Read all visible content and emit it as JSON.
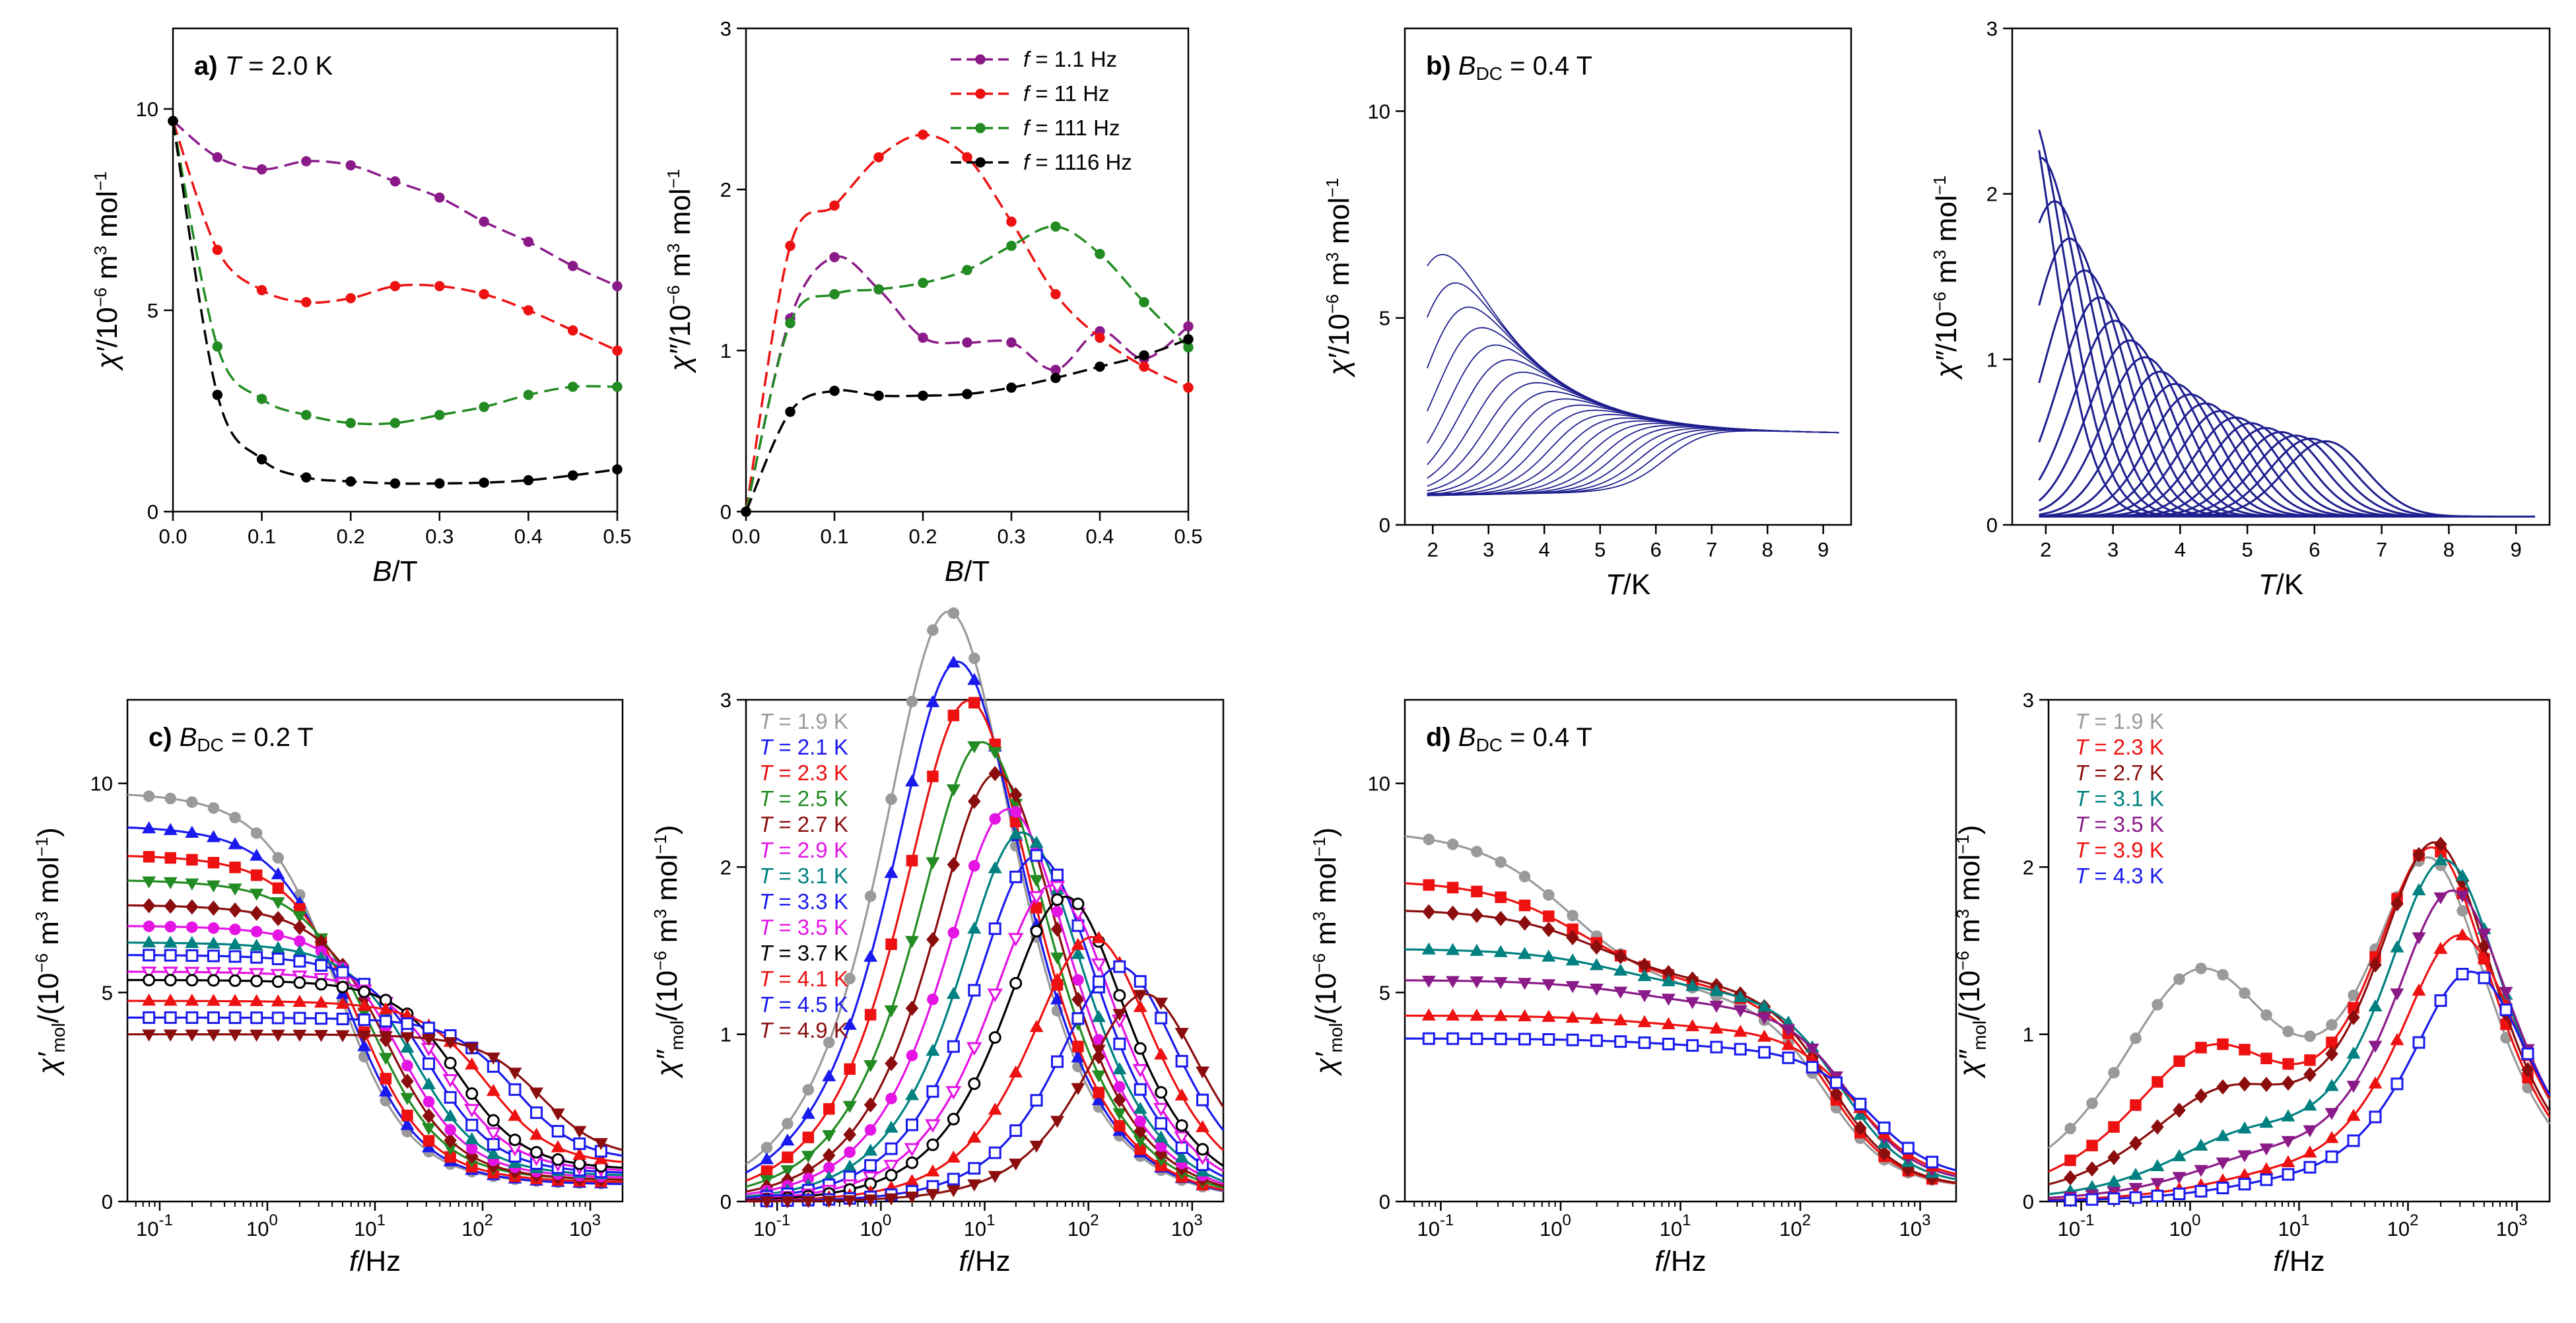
{
  "figure": {
    "colors": {
      "purple": "#8b1a89",
      "red": "#ee1111",
      "green": "#228b22",
      "black": "#000000",
      "blue": "#1a1aee",
      "darkred": "#8b0d0d",
      "teal": "#008080",
      "magenta": "#e414e4",
      "gray": "#9a9a9a",
      "navy": "#1f1f8f",
      "purple2": "#8b1a89"
    }
  },
  "chart_data": [
    {
      "id": "a1",
      "type": "line",
      "title_label": "a)",
      "title_sym": "T",
      "title_value": "= 2.0 K",
      "xlabel": {
        "sym": "B",
        "unit": "/T"
      },
      "ylabel": {
        "sym": "χ′",
        "unit": "/10",
        "exp": "−6",
        "tail": " m",
        "exp2": "3",
        "tail2": " mol",
        "exp3": "−1"
      },
      "xlim": [
        0,
        0.5
      ],
      "ylim": [
        0,
        12
      ],
      "xticks": [
        0,
        0.1,
        0.2,
        0.3,
        0.4,
        0.5
      ],
      "xticklabels": [
        "0.0",
        "0.1",
        "0.2",
        "0.3",
        "0.4",
        "0.5"
      ],
      "yticks": [
        0,
        5,
        10
      ],
      "yticklabels": [
        "0",
        "5",
        "10"
      ],
      "series": [
        {
          "name": "f = 1.1 Hz",
          "color": "#8b1a89",
          "x": [
            0,
            0.05,
            0.1,
            0.15,
            0.2,
            0.25,
            0.3,
            0.35,
            0.4,
            0.45,
            0.5
          ],
          "y": [
            9.7,
            8.8,
            8.5,
            8.7,
            8.6,
            8.2,
            7.8,
            7.2,
            6.7,
            6.1,
            5.6
          ]
        },
        {
          "name": "f = 11 Hz",
          "color": "#ee1111",
          "x": [
            0,
            0.05,
            0.1,
            0.15,
            0.2,
            0.25,
            0.3,
            0.35,
            0.4,
            0.45,
            0.5
          ],
          "y": [
            9.7,
            6.5,
            5.5,
            5.2,
            5.3,
            5.6,
            5.6,
            5.4,
            5.0,
            4.5,
            4.0
          ]
        },
        {
          "name": "f = 111 Hz",
          "color": "#228b22",
          "x": [
            0,
            0.05,
            0.1,
            0.15,
            0.2,
            0.25,
            0.3,
            0.35,
            0.4,
            0.45,
            0.5
          ],
          "y": [
            9.7,
            4.1,
            2.8,
            2.4,
            2.2,
            2.2,
            2.4,
            2.6,
            2.9,
            3.1,
            3.1
          ]
        },
        {
          "name": "f = 1116 Hz",
          "color": "#000000",
          "x": [
            0,
            0.05,
            0.1,
            0.15,
            0.2,
            0.25,
            0.3,
            0.35,
            0.4,
            0.45,
            0.5
          ],
          "y": [
            9.7,
            2.9,
            1.3,
            0.85,
            0.75,
            0.7,
            0.7,
            0.72,
            0.78,
            0.9,
            1.05
          ]
        }
      ]
    },
    {
      "id": "a2",
      "type": "line",
      "xlabel": {
        "sym": "B",
        "unit": "/T"
      },
      "ylabel": {
        "sym": "χ″",
        "unit": "/10",
        "exp": "−6",
        "tail": " m",
        "exp2": "3",
        "tail2": " mol",
        "exp3": "−1"
      },
      "xlim": [
        0,
        0.5
      ],
      "ylim": [
        0,
        3
      ],
      "xticks": [
        0,
        0.1,
        0.2,
        0.3,
        0.4,
        0.5
      ],
      "xticklabels": [
        "0.0",
        "0.1",
        "0.2",
        "0.3",
        "0.4",
        "0.5"
      ],
      "yticks": [
        0,
        1,
        2,
        3
      ],
      "yticklabels": [
        "0",
        "1",
        "2",
        "3"
      ],
      "legend": {
        "placement": "top-right",
        "entries": [
          {
            "sym": "f",
            "text": " = 1.1 Hz"
          },
          {
            "sym": "f",
            "text": " = 11 Hz"
          },
          {
            "sym": "f",
            "text": " = 111 Hz"
          },
          {
            "sym": "f",
            "text": " = 1116 Hz"
          }
        ]
      },
      "series": [
        {
          "name": "f = 1.1 Hz",
          "color": "#8b1a89",
          "x": [
            0,
            0.05,
            0.1,
            0.15,
            0.2,
            0.25,
            0.3,
            0.35,
            0.4,
            0.45,
            0.5
          ],
          "y": [
            0,
            1.2,
            1.58,
            1.38,
            1.08,
            1.05,
            1.05,
            0.88,
            1.12,
            0.95,
            1.15
          ]
        },
        {
          "name": "f = 11 Hz",
          "color": "#ee1111",
          "x": [
            0,
            0.05,
            0.1,
            0.15,
            0.2,
            0.25,
            0.3,
            0.35,
            0.4,
            0.45,
            0.5
          ],
          "y": [
            0,
            1.65,
            1.9,
            2.2,
            2.34,
            2.2,
            1.8,
            1.35,
            1.08,
            0.9,
            0.77
          ]
        },
        {
          "name": "f = 111 Hz",
          "color": "#228b22",
          "x": [
            0,
            0.05,
            0.1,
            0.15,
            0.2,
            0.25,
            0.3,
            0.35,
            0.4,
            0.45,
            0.5
          ],
          "y": [
            0,
            1.17,
            1.35,
            1.38,
            1.42,
            1.5,
            1.65,
            1.77,
            1.6,
            1.3,
            1.02
          ]
        },
        {
          "name": "f = 1116 Hz",
          "color": "#000000",
          "x": [
            0,
            0.05,
            0.1,
            0.15,
            0.2,
            0.25,
            0.3,
            0.35,
            0.4,
            0.45,
            0.5
          ],
          "y": [
            0,
            0.62,
            0.75,
            0.72,
            0.72,
            0.73,
            0.77,
            0.83,
            0.9,
            0.97,
            1.07
          ]
        }
      ]
    },
    {
      "id": "b1",
      "type": "line",
      "title_label": "b)",
      "title_sym": "B",
      "title_sub": "DC",
      "title_value": " = 0.4 T",
      "xlabel": {
        "sym": "T",
        "unit": "/K"
      },
      "ylabel": {
        "sym": "χ′",
        "unit": "/10",
        "exp": "−6",
        "tail": " m",
        "exp2": "3",
        "tail2": " mol",
        "exp3": "−1"
      },
      "xlim": [
        1.5,
        9.5
      ],
      "ylim": [
        0,
        12
      ],
      "xticks": [
        2,
        3,
        4,
        5,
        6,
        7,
        8,
        9
      ],
      "xticklabels": [
        "2",
        "3",
        "4",
        "5",
        "6",
        "7",
        "8",
        "9"
      ],
      "yticks": [
        0,
        5,
        10
      ],
      "yticklabels": [
        "0",
        "5",
        "10"
      ],
      "family": {
        "color": "#1f1f8f",
        "count": 22,
        "x_start": 1.9,
        "x_end": 9.3,
        "description": "family of temperature curves, one per frequency"
      }
    },
    {
      "id": "b2",
      "type": "line",
      "xlabel": {
        "sym": "T",
        "unit": "/K"
      },
      "ylabel": {
        "sym": "χ″",
        "unit": "/10",
        "exp": "−6",
        "tail": " m",
        "exp2": "3",
        "tail2": " mol",
        "exp3": "−1"
      },
      "xlim": [
        1.5,
        9.5
      ],
      "ylim": [
        0,
        3
      ],
      "xticks": [
        2,
        3,
        4,
        5,
        6,
        7,
        8,
        9
      ],
      "xticklabels": [
        "2",
        "3",
        "4",
        "5",
        "6",
        "7",
        "8",
        "9"
      ],
      "yticks": [
        0,
        1,
        2,
        3
      ],
      "yticklabels": [
        "0",
        "1",
        "2",
        "3"
      ],
      "family": {
        "color": "#1f1f8f",
        "count": 22,
        "peak_T_range": [
          1.9,
          6.3
        ]
      }
    },
    {
      "id": "c1",
      "type": "scatter",
      "title_label": "c)",
      "title_sym": "B",
      "title_sub": "DC",
      "title_value": " = 0.2 T",
      "xlabel": {
        "sym": "f",
        "unit": "/Hz"
      },
      "ylabel": {
        "sym": "χ′",
        "sub": "mol",
        "unit": "/(10",
        "exp": "−6",
        "tail": " m",
        "exp2": "3",
        "tail2": " mol",
        "exp3": "−1",
        "close": ")"
      },
      "xscale": "log",
      "xlim": [
        -1.3,
        3.3
      ],
      "ylim": [
        0,
        12
      ],
      "xticks": [
        -1,
        0,
        1,
        2,
        3
      ],
      "xticklabels": [
        "10",
        "10",
        "10",
        "10",
        "10"
      ],
      "xtickexp": [
        "-1",
        "0",
        "1",
        "2",
        "3"
      ],
      "yticks": [
        0,
        5,
        10
      ],
      "yticklabels": [
        "0",
        "5",
        "10"
      ],
      "series": [
        {
          "name": "T = 1.9 K",
          "color": "#9a9a9a",
          "marker": "circle",
          "chi0": 9.8,
          "chiS": 0.4,
          "f0": 4.5,
          "alpha": 0.18
        },
        {
          "name": "T = 2.1 K",
          "color": "#1a1aee",
          "marker": "triangle-up",
          "chi0": 9.0,
          "chiS": 0.4,
          "f0": 5.5,
          "alpha": 0.18
        },
        {
          "name": "T = 2.3 K",
          "color": "#ee1111",
          "marker": "square",
          "chi0": 8.3,
          "chiS": 0.45,
          "f0": 7.0,
          "alpha": 0.17
        },
        {
          "name": "T = 2.5 K",
          "color": "#228b22",
          "marker": "triangle-down",
          "chi0": 7.7,
          "chiS": 0.5,
          "f0": 9.5,
          "alpha": 0.17
        },
        {
          "name": "T = 2.7 K",
          "color": "#8b0d0d",
          "marker": "diamond",
          "chi0": 7.1,
          "chiS": 0.5,
          "f0": 13,
          "alpha": 0.16
        },
        {
          "name": "T = 2.9 K",
          "color": "#e414e4",
          "marker": "circle",
          "chi0": 6.6,
          "chiS": 0.55,
          "f0": 17,
          "alpha": 0.16
        },
        {
          "name": "T = 3.1 K",
          "color": "#008080",
          "marker": "triangle-up",
          "chi0": 6.2,
          "chiS": 0.6,
          "f0": 23,
          "alpha": 0.15
        },
        {
          "name": "T = 3.3 K",
          "color": "#1a1aee",
          "marker": "square-open",
          "chi0": 5.9,
          "chiS": 0.65,
          "f0": 32,
          "alpha": 0.15
        },
        {
          "name": "T = 3.5 K",
          "color": "#e414e4",
          "marker": "triangle-down-open",
          "chi0": 5.5,
          "chiS": 0.7,
          "f0": 45,
          "alpha": 0.15
        },
        {
          "name": "T = 3.7 K",
          "color": "#000000",
          "marker": "circle-open",
          "chi0": 5.3,
          "chiS": 0.75,
          "f0": 60,
          "alpha": 0.14
        },
        {
          "name": "T = 4.1 K",
          "color": "#ee1111",
          "marker": "triangle-up",
          "chi0": 4.8,
          "chiS": 0.85,
          "f0": 110,
          "alpha": 0.14
        },
        {
          "name": "T = 4.5 K",
          "color": "#1a1aee",
          "marker": "square-open",
          "chi0": 4.4,
          "chiS": 0.95,
          "f0": 200,
          "alpha": 0.13
        },
        {
          "name": "T = 4.9 K",
          "color": "#8b0d0d",
          "marker": "triangle-down",
          "chi0": 4.0,
          "chiS": 1.0,
          "f0": 350,
          "alpha": 0.12
        }
      ]
    },
    {
      "id": "c2",
      "type": "scatter",
      "xlabel": {
        "sym": "f",
        "unit": "/Hz"
      },
      "ylabel": {
        "sym": "χ″",
        "sub": "mol",
        "unit": "/(10",
        "exp": "−6",
        "tail": " m",
        "exp2": "3",
        "tail2": " mol",
        "exp3": "−1",
        "close": ")"
      },
      "xscale": "log",
      "xlim": [
        -1.3,
        3.3
      ],
      "ylim": [
        0,
        3
      ],
      "xticks": [
        -1,
        0,
        1,
        2,
        3
      ],
      "xticklabels": [
        "10",
        "10",
        "10",
        "10",
        "10"
      ],
      "xtickexp": [
        "-1",
        "0",
        "1",
        "2",
        "3"
      ],
      "yticks": [
        0,
        1,
        2,
        3
      ],
      "yticklabels": [
        "0",
        "1",
        "2",
        "3"
      ],
      "legend": {
        "placement": "top-left",
        "entries": [
          {
            "sym": "T",
            "text": " = 1.9 K"
          },
          {
            "sym": "T",
            "text": " = 2.1 K"
          },
          {
            "sym": "T",
            "text": " = 2.3 K"
          },
          {
            "sym": "T",
            "text": " = 2.5 K"
          },
          {
            "sym": "T",
            "text": " = 2.7 K"
          },
          {
            "sym": "T",
            "text": " = 2.9 K"
          },
          {
            "sym": "T",
            "text": " = 3.1 K"
          },
          {
            "sym": "T",
            "text": " = 3.3 K"
          },
          {
            "sym": "T",
            "text": " = 3.5 K"
          },
          {
            "sym": "T",
            "text": " = 3.7 K"
          },
          {
            "sym": "T",
            "text": " = 4.1 K"
          },
          {
            "sym": "T",
            "text": " = 4.5 K"
          },
          {
            "sym": "T",
            "text": " = 4.9 K"
          }
        ]
      },
      "uses_series_of": "c1"
    },
    {
      "id": "d1",
      "type": "scatter",
      "title_label": "d)",
      "title_sym": "B",
      "title_sub": "DC",
      "title_value": " = 0.4 T",
      "xlabel": {
        "sym": "f",
        "unit": "/Hz"
      },
      "ylabel": {
        "sym": "χ′",
        "sub": "mol",
        "unit": "/(10",
        "exp": "−6",
        "tail": " m",
        "exp2": "3",
        "tail2": " mol",
        "exp3": "−1",
        "close": ")"
      },
      "xscale": "log",
      "xlim": [
        -1.3,
        3.3
      ],
      "ylim": [
        0,
        12
      ],
      "xticks": [
        -1,
        0,
        1,
        2,
        3
      ],
      "xticklabels": [
        "10",
        "10",
        "10",
        "10",
        "10"
      ],
      "xtickexp": [
        "-1",
        "0",
        "1",
        "2",
        "3"
      ],
      "yticks": [
        0,
        5,
        10
      ],
      "yticklabels": [
        "0",
        "5",
        "10"
      ],
      "series": [
        {
          "name": "T = 1.9 K",
          "color": "#9a9a9a",
          "marker": "circle",
          "comps": [
            {
              "A": 4.0,
              "f0": 1.2,
              "a": 0.25
            },
            {
              "A": 4.6,
              "f0": 160,
              "a": 0.1
            }
          ],
          "chiS": 0.3
        },
        {
          "name": "T = 2.3 K",
          "color": "#ee1111",
          "marker": "square",
          "comps": [
            {
              "A": 2.6,
              "f0": 1.5,
              "a": 0.25
            },
            {
              "A": 4.8,
              "f0": 170,
              "a": 0.1
            }
          ],
          "chiS": 0.3
        },
        {
          "name": "T = 2.7 K",
          "color": "#8b0d0d",
          "marker": "diamond",
          "comps": [
            {
              "A": 1.8,
              "f0": 2.0,
              "a": 0.25
            },
            {
              "A": 4.9,
              "f0": 180,
              "a": 0.1
            }
          ],
          "chiS": 0.3
        },
        {
          "name": "T = 3.1 K",
          "color": "#008080",
          "marker": "triangle-up",
          "comps": [
            {
              "A": 1.0,
              "f0": 3.0,
              "a": 0.25
            },
            {
              "A": 4.7,
              "f0": 220,
              "a": 0.1
            }
          ],
          "chiS": 0.35
        },
        {
          "name": "T = 3.5 K",
          "color": "#8b1a89",
          "marker": "triangle-down",
          "comps": [
            {
              "A": 0.6,
              "f0": 4.0,
              "a": 0.25
            },
            {
              "A": 4.3,
              "f0": 260,
              "a": 0.1
            }
          ],
          "chiS": 0.4
        },
        {
          "name": "T = 3.9 K",
          "color": "#ee1111",
          "marker": "triangle-up",
          "comps": [
            {
              "A": 0.3,
              "f0": 5.0,
              "a": 0.25
            },
            {
              "A": 3.7,
              "f0": 300,
              "a": 0.1
            }
          ],
          "chiS": 0.45
        },
        {
          "name": "T = 4.3 K",
          "color": "#1a1aee",
          "marker": "square-open",
          "comps": [
            {
              "A": 0.2,
              "f0": 6.0,
              "a": 0.25
            },
            {
              "A": 3.2,
              "f0": 380,
              "a": 0.1
            }
          ],
          "chiS": 0.5
        }
      ]
    },
    {
      "id": "d2",
      "type": "scatter",
      "xlabel": {
        "sym": "f",
        "unit": "/Hz"
      },
      "ylabel": {
        "sym": "χ″",
        "sub": "mol",
        "unit": "/(10",
        "exp": "−6",
        "tail": " m",
        "exp2": "3",
        "tail2": " mol",
        "exp3": "−1",
        "close": ")"
      },
      "xscale": "log",
      "xlim": [
        -1.3,
        3.3
      ],
      "ylim": [
        0,
        3
      ],
      "xticks": [
        -1,
        0,
        1,
        2,
        3
      ],
      "xticklabels": [
        "10",
        "10",
        "10",
        "10",
        "10"
      ],
      "xtickexp": [
        "-1",
        "0",
        "1",
        "2",
        "3"
      ],
      "yticks": [
        0,
        1,
        2,
        3
      ],
      "yticklabels": [
        "0",
        "1",
        "2",
        "3"
      ],
      "legend": {
        "placement": "top-left",
        "entries": [
          {
            "sym": "T",
            "text": " = 1.9 K"
          },
          {
            "sym": "T",
            "text": " = 2.3 K"
          },
          {
            "sym": "T",
            "text": " = 2.7 K"
          },
          {
            "sym": "T",
            "text": " = 3.1 K"
          },
          {
            "sym": "T",
            "text": " = 3.5 K"
          },
          {
            "sym": "T",
            "text": " = 3.9 K"
          },
          {
            "sym": "T",
            "text": " = 4.3 K"
          }
        ]
      },
      "uses_series_of": "d1"
    }
  ]
}
